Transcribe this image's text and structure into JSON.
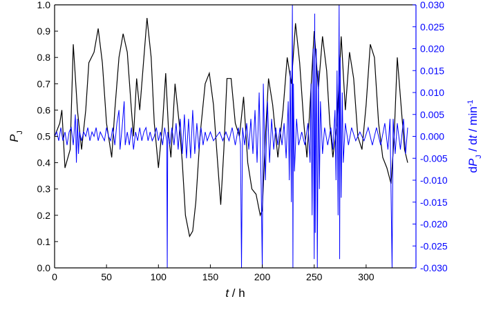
{
  "chart_data": {
    "type": "line",
    "xlabel": [
      "t",
      " / h"
    ],
    "ylabel": [
      "P",
      "J"
    ],
    "y2label": [
      "d",
      "P",
      "J",
      " / d",
      "t",
      " / min",
      "-1"
    ],
    "xlim": [
      0,
      348
    ],
    "xticks": [
      0,
      50,
      100,
      150,
      200,
      250,
      300
    ],
    "ylim": [
      0,
      1
    ],
    "yticks": [
      {
        "value": 0,
        "label": "0.0"
      },
      0.1,
      0.2,
      0.3,
      0.4,
      0.5,
      0.6,
      0.7,
      0.8,
      0.9,
      {
        "value": 1,
        "label": "1.0"
      }
    ],
    "y2lim": [
      -0.03,
      0.03
    ],
    "y2ticks": [
      {
        "value": -0.03,
        "label": "-0.030"
      },
      {
        "value": -0.025,
        "label": "-0.025"
      },
      {
        "value": -0.02,
        "label": "-0.020"
      },
      {
        "value": -0.015,
        "label": "-0.015"
      },
      {
        "value": -0.01,
        "label": "-0.010"
      },
      {
        "value": -0.005,
        "label": "-0.005"
      },
      {
        "value": 0,
        "label": "0.000"
      },
      {
        "value": 0.005,
        "label": "0.005"
      },
      {
        "value": 0.01,
        "label": "0.010"
      },
      {
        "value": 0.015,
        "label": "0.015"
      },
      {
        "value": 0.02,
        "label": "0.020"
      },
      {
        "value": 0.025,
        "label": "0.025"
      },
      {
        "value": 0.03,
        "label": "0.030"
      }
    ],
    "series": [
      {
        "color": "#000000",
        "x": [
          0,
          5,
          7,
          10,
          15,
          18,
          22,
          26,
          30,
          33,
          38,
          42,
          46,
          50,
          55,
          58,
          62,
          66,
          70,
          74,
          76,
          79,
          82,
          85,
          89,
          93,
          96,
          100,
          104,
          107,
          110,
          112,
          116,
          120,
          123,
          126,
          130,
          133,
          136,
          140,
          145,
          149,
          153,
          157,
          160,
          163,
          166,
          170,
          174,
          178,
          182,
          186,
          190,
          194,
          198,
          200,
          203,
          206,
          210,
          215,
          220,
          224,
          228,
          232,
          236,
          240,
          243,
          246,
          250,
          254,
          258,
          262,
          265,
          268,
          272,
          276,
          280,
          284,
          288,
          292,
          296,
          300,
          304,
          308,
          312,
          316,
          320,
          324,
          327,
          330,
          334,
          337,
          340
        ],
        "values": [
          0.5,
          0.55,
          0.6,
          0.38,
          0.45,
          0.85,
          0.6,
          0.45,
          0.6,
          0.78,
          0.82,
          0.91,
          0.78,
          0.55,
          0.42,
          0.6,
          0.8,
          0.89,
          0.82,
          0.6,
          0.5,
          0.72,
          0.6,
          0.75,
          0.95,
          0.8,
          0.55,
          0.38,
          0.55,
          0.74,
          0.5,
          0.42,
          0.7,
          0.55,
          0.4,
          0.2,
          0.12,
          0.14,
          0.25,
          0.5,
          0.7,
          0.74,
          0.62,
          0.4,
          0.24,
          0.45,
          0.72,
          0.72,
          0.55,
          0.5,
          0.65,
          0.4,
          0.3,
          0.28,
          0.2,
          0.22,
          0.5,
          0.72,
          0.62,
          0.42,
          0.6,
          0.8,
          0.7,
          0.93,
          0.78,
          0.55,
          0.42,
          0.62,
          0.9,
          0.68,
          0.88,
          0.75,
          0.55,
          0.42,
          0.55,
          0.88,
          0.6,
          0.82,
          0.72,
          0.5,
          0.45,
          0.62,
          0.85,
          0.8,
          0.55,
          0.42,
          0.38,
          0.32,
          0.5,
          0.8,
          0.6,
          0.45,
          0.4
        ]
      },
      {
        "color": "#0000ff",
        "axis": "y2",
        "x": [
          0,
          2,
          4,
          6,
          8,
          10,
          12,
          14,
          16,
          18,
          20,
          21,
          22,
          23,
          24,
          26,
          28,
          30,
          32,
          34,
          36,
          38,
          40,
          42,
          44,
          46,
          48,
          50,
          52,
          54,
          56,
          58,
          60,
          62,
          63,
          65,
          67,
          68,
          70,
          72,
          74,
          76,
          78,
          80,
          82,
          84,
          86,
          88,
          90,
          92,
          94,
          96,
          98,
          100,
          102,
          104,
          106,
          108,
          108.5,
          109,
          111,
          113,
          115,
          117,
          119,
          121,
          123,
          125,
          127,
          129,
          131,
          133,
          135,
          137,
          139,
          141,
          143,
          145,
          147,
          150,
          153,
          156,
          159,
          162,
          165,
          168,
          171,
          174,
          177,
          179,
          180,
          181,
          183,
          185,
          187,
          189,
          191,
          193,
          195,
          197,
          199,
          200,
          201,
          203,
          205,
          207,
          209,
          211,
          213,
          215,
          217,
          219,
          221,
          223,
          225,
          226,
          227,
          228,
          229,
          229.5,
          230,
          231,
          233,
          235,
          238,
          241,
          244,
          246,
          247,
          248,
          249,
          250,
          250.5,
          251,
          252,
          253,
          254,
          255,
          256,
          258,
          260,
          263,
          266,
          268,
          270,
          271,
          272,
          273,
          274,
          274.5,
          275,
          276,
          277,
          278,
          280,
          283,
          286,
          290,
          294,
          298,
          302,
          306,
          310,
          314,
          318,
          321,
          323,
          325,
          326,
          328,
          330,
          333,
          336,
          338,
          340
        ],
        "values": [
          0,
          0.001,
          -0.001,
          0.002,
          -0.001,
          0.001,
          -0.002,
          0.001,
          0.002,
          -0.002,
          0.005,
          -0.006,
          0.004,
          -0.004,
          0.001,
          -0.001,
          0.001,
          0,
          0.002,
          -0.001,
          0.001,
          0,
          0.002,
          -0.001,
          0.001,
          0,
          -0.001,
          0.002,
          0,
          -0.001,
          0.002,
          -0.002,
          0.003,
          0.006,
          -0.003,
          0.002,
          0.008,
          -0.002,
          0.001,
          -0.002,
          0.002,
          -0.003,
          0.001,
          -0.001,
          0.002,
          -0.001,
          0.001,
          0.002,
          -0.001,
          0.001,
          -0.001,
          0,
          0.002,
          -0.001,
          0.001,
          -0.002,
          0.002,
          -0.001,
          -0.03,
          0.001,
          -0.002,
          0.002,
          -0.002,
          0.003,
          -0.003,
          0.004,
          -0.004,
          0.005,
          -0.005,
          0.004,
          -0.005,
          0.006,
          -0.004,
          0.003,
          -0.003,
          0.002,
          -0.002,
          0.001,
          -0.001,
          0.001,
          -0.001,
          0,
          0.001,
          -0.001,
          0.001,
          -0.001,
          0.002,
          -0.002,
          0.002,
          -0.002,
          -0.03,
          0.002,
          -0.002,
          0.003,
          -0.003,
          0.004,
          -0.004,
          0.006,
          -0.006,
          0.01,
          -0.012,
          -0.03,
          0.012,
          -0.01,
          0.008,
          -0.006,
          0.004,
          -0.003,
          0.002,
          -0.002,
          0.002,
          -0.002,
          0.003,
          -0.005,
          0.008,
          -0.01,
          0.015,
          -0.015,
          0.03,
          -0.03,
          0.012,
          -0.008,
          0.004,
          -0.002,
          0.001,
          -0.002,
          0.003,
          -0.006,
          0.012,
          -0.018,
          0.02,
          -0.028,
          0.028,
          -0.022,
          0.02,
          -0.03,
          0.015,
          -0.012,
          0.008,
          -0.004,
          0.002,
          -0.002,
          0.002,
          -0.003,
          0.006,
          -0.01,
          0.015,
          -0.018,
          0.03,
          -0.028,
          0.018,
          -0.014,
          0.01,
          -0.006,
          0.003,
          -0.002,
          0.002,
          -0.001,
          0.001,
          -0.001,
          0.002,
          -0.002,
          0.002,
          -0.002,
          0.003,
          -0.003,
          0.004,
          -0.03,
          0.004,
          -0.004,
          0.003,
          -0.003,
          0.004,
          -0.004,
          0.002
        ]
      }
    ]
  }
}
